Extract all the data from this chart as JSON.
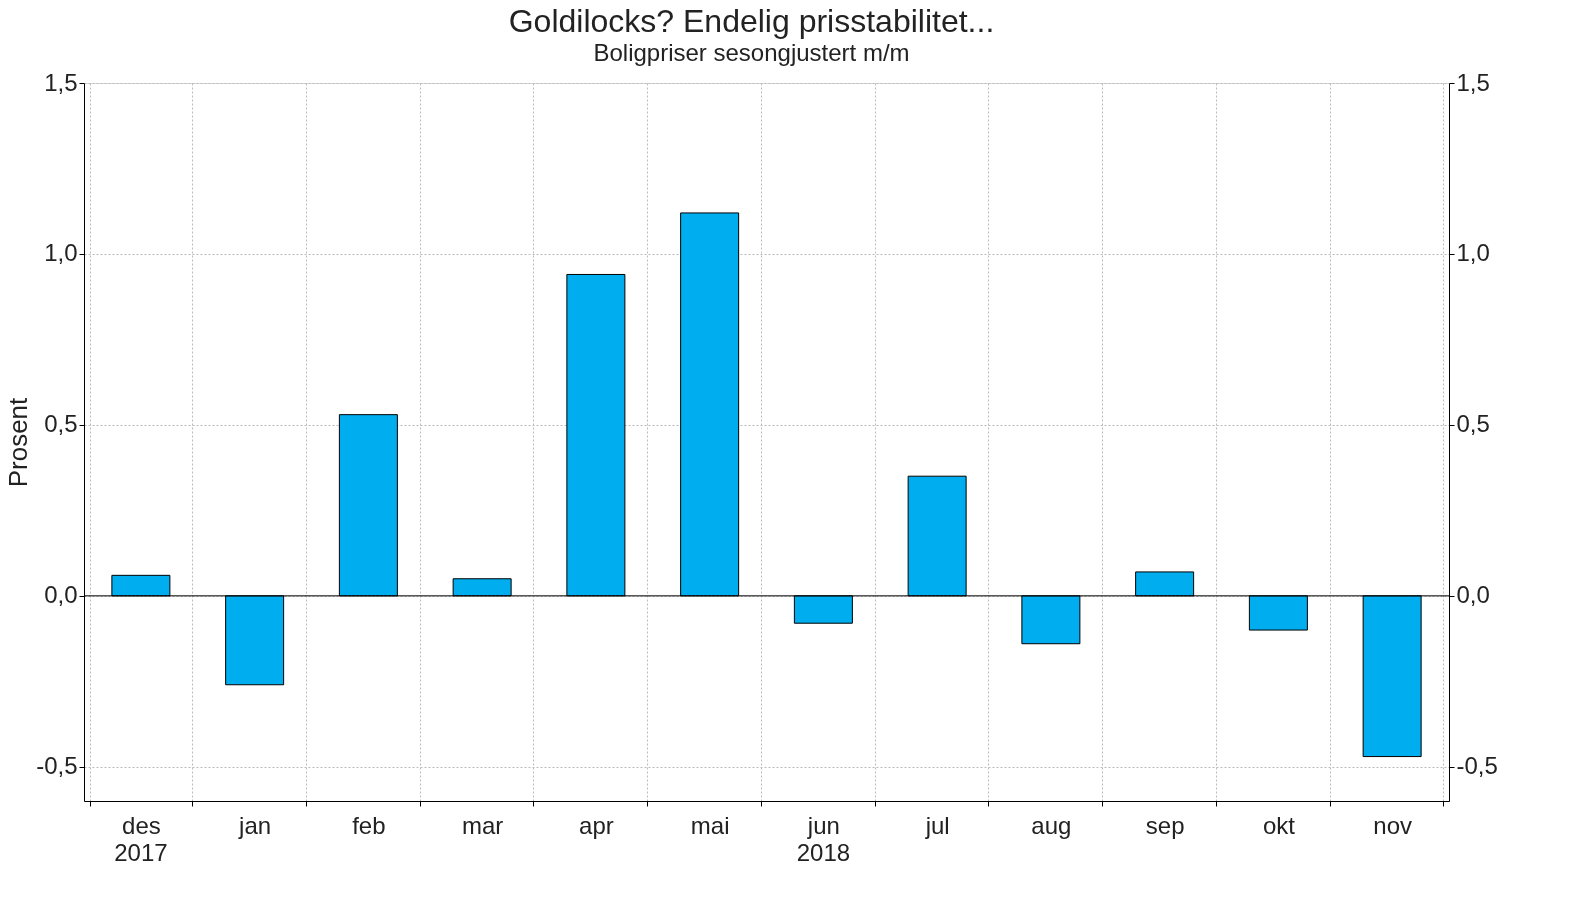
{
  "chart_data": {
    "type": "bar",
    "title": "Goldilocks? Endelig prisstabilitet...",
    "subtitle": "Boligpriser sesongjustert m/m",
    "ylabel": "Prosent",
    "categories": [
      "des",
      "jan",
      "feb",
      "mar",
      "apr",
      "mai",
      "jun",
      "jul",
      "aug",
      "sep",
      "okt",
      "nov"
    ],
    "series": [
      {
        "color": "#00adef",
        "values": [
          0.06,
          -0.26,
          0.53,
          0.05,
          0.94,
          1.12,
          -0.08,
          0.35,
          -0.14,
          0.07,
          -0.1,
          -0.47
        ]
      }
    ],
    "ylim": [
      -0.6,
      1.5
    ],
    "yticks": [
      {
        "value": -0.5,
        "label": "-0,5"
      },
      {
        "value": 0,
        "label": "0,0"
      },
      {
        "value": 0.5,
        "label": "0,5"
      },
      {
        "value": 1.0,
        "label": "1,0"
      },
      {
        "value": 1.5,
        "label": "1,5"
      }
    ],
    "y2lim": [
      -0.6,
      1.5
    ],
    "y2ticks": [
      {
        "value": -0.5,
        "label": "-0,5"
      },
      {
        "value": 0,
        "label": "0,0"
      },
      {
        "value": 0.5,
        "label": "0,5"
      },
      {
        "value": 1.0,
        "label": "1,0"
      },
      {
        "value": 1.5,
        "label": "1,5"
      }
    ],
    "ref_lines": [
      {
        "axis": "y",
        "value": 0,
        "color": "#000000"
      }
    ],
    "annotations": [
      "2017",
      "2018"
    ],
    "grid": true,
    "legend": false
  }
}
